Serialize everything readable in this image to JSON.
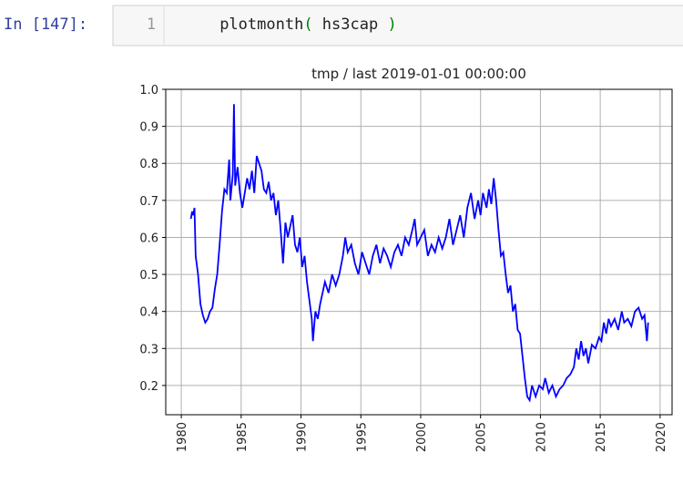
{
  "cell": {
    "prompt": "In [147]:",
    "line_number": "1",
    "code": [
      "plotmonth",
      "(",
      " hs3cap ",
      ")"
    ]
  },
  "chart_data": {
    "type": "line",
    "title": "tmp / last 2019-01-01 00:00:00",
    "xlim": [
      1978.7,
      2021.0
    ],
    "ylim": [
      0.121,
      1.0
    ],
    "xticks": [
      1980,
      1985,
      1990,
      1995,
      2000,
      2005,
      2010,
      2015,
      2020
    ],
    "yticks": [
      0.2,
      0.3,
      0.4,
      0.5,
      0.6,
      0.7,
      0.8,
      0.9,
      {
        "value": 1.0,
        "label": "1.0"
      }
    ],
    "grid": true,
    "series": [
      {
        "color": "#0000ff",
        "x": [
          1980.8,
          1980.9,
          1981.0,
          1981.1,
          1981.2,
          1981.4,
          1981.6,
          1981.8,
          1982.0,
          1982.2,
          1982.4,
          1982.6,
          1982.8,
          1983.0,
          1983.2,
          1983.4,
          1983.6,
          1983.8,
          1984.0,
          1984.1,
          1984.3,
          1984.4,
          1984.5,
          1984.7,
          1984.9,
          1985.1,
          1985.3,
          1985.5,
          1985.7,
          1985.9,
          1986.1,
          1986.3,
          1986.5,
          1986.7,
          1986.9,
          1987.1,
          1987.3,
          1987.5,
          1987.7,
          1987.9,
          1988.1,
          1988.3,
          1988.5,
          1988.7,
          1988.9,
          1989.1,
          1989.3,
          1989.5,
          1989.7,
          1989.9,
          1990.1,
          1990.3,
          1990.5,
          1990.7,
          1990.9,
          1991.0,
          1991.2,
          1991.4,
          1991.6,
          1991.8,
          1992.0,
          1992.3,
          1992.6,
          1992.9,
          1993.2,
          1993.5,
          1993.7,
          1993.9,
          1994.2,
          1994.5,
          1994.8,
          1995.1,
          1995.4,
          1995.7,
          1996.0,
          1996.3,
          1996.6,
          1996.9,
          1997.2,
          1997.5,
          1997.8,
          1998.1,
          1998.4,
          1998.7,
          1999.0,
          1999.3,
          1999.5,
          1999.7,
          2000.0,
          2000.3,
          2000.6,
          2000.9,
          2001.2,
          2001.5,
          2001.8,
          2002.1,
          2002.4,
          2002.7,
          2003.0,
          2003.3,
          2003.6,
          2003.9,
          2004.2,
          2004.5,
          2004.8,
          2005.0,
          2005.2,
          2005.5,
          2005.7,
          2005.9,
          2006.1,
          2006.3,
          2006.5,
          2006.7,
          2006.9,
          2007.1,
          2007.3,
          2007.5,
          2007.7,
          2007.9,
          2008.1,
          2008.3,
          2008.5,
          2008.7,
          2008.9,
          2009.1,
          2009.3,
          2009.6,
          2009.9,
          2010.2,
          2010.4,
          2010.7,
          2011.0,
          2011.3,
          2011.6,
          2011.9,
          2012.2,
          2012.5,
          2012.8,
          2013.0,
          2013.2,
          2013.4,
          2013.6,
          2013.8,
          2014.0,
          2014.3,
          2014.6,
          2014.9,
          2015.1,
          2015.3,
          2015.5,
          2015.7,
          2015.9,
          2016.2,
          2016.5,
          2016.8,
          2017.0,
          2017.3,
          2017.6,
          2017.9,
          2018.2,
          2018.5,
          2018.7,
          2018.9,
          2019.0
        ],
        "values": [
          0.65,
          0.67,
          0.66,
          0.68,
          0.55,
          0.5,
          0.42,
          0.39,
          0.37,
          0.38,
          0.4,
          0.41,
          0.46,
          0.5,
          0.58,
          0.67,
          0.73,
          0.72,
          0.81,
          0.7,
          0.77,
          0.96,
          0.74,
          0.79,
          0.72,
          0.68,
          0.72,
          0.76,
          0.73,
          0.78,
          0.72,
          0.82,
          0.8,
          0.78,
          0.73,
          0.72,
          0.75,
          0.7,
          0.72,
          0.66,
          0.7,
          0.62,
          0.53,
          0.64,
          0.6,
          0.63,
          0.66,
          0.58,
          0.56,
          0.6,
          0.52,
          0.55,
          0.48,
          0.43,
          0.38,
          0.32,
          0.4,
          0.38,
          0.42,
          0.45,
          0.48,
          0.45,
          0.5,
          0.47,
          0.5,
          0.55,
          0.6,
          0.56,
          0.58,
          0.53,
          0.5,
          0.56,
          0.53,
          0.5,
          0.55,
          0.58,
          0.53,
          0.57,
          0.55,
          0.52,
          0.56,
          0.58,
          0.55,
          0.6,
          0.58,
          0.62,
          0.65,
          0.58,
          0.6,
          0.62,
          0.55,
          0.58,
          0.56,
          0.6,
          0.57,
          0.6,
          0.65,
          0.58,
          0.62,
          0.66,
          0.6,
          0.68,
          0.72,
          0.65,
          0.7,
          0.66,
          0.72,
          0.68,
          0.73,
          0.69,
          0.76,
          0.7,
          0.62,
          0.55,
          0.56,
          0.5,
          0.45,
          0.47,
          0.4,
          0.42,
          0.35,
          0.34,
          0.28,
          0.22,
          0.17,
          0.16,
          0.2,
          0.17,
          0.2,
          0.19,
          0.22,
          0.18,
          0.2,
          0.17,
          0.19,
          0.2,
          0.22,
          0.23,
          0.25,
          0.3,
          0.27,
          0.32,
          0.28,
          0.3,
          0.26,
          0.31,
          0.3,
          0.33,
          0.32,
          0.37,
          0.34,
          0.38,
          0.36,
          0.38,
          0.35,
          0.4,
          0.37,
          0.38,
          0.36,
          0.4,
          0.41,
          0.38,
          0.39,
          0.32,
          0.37
        ]
      }
    ]
  }
}
